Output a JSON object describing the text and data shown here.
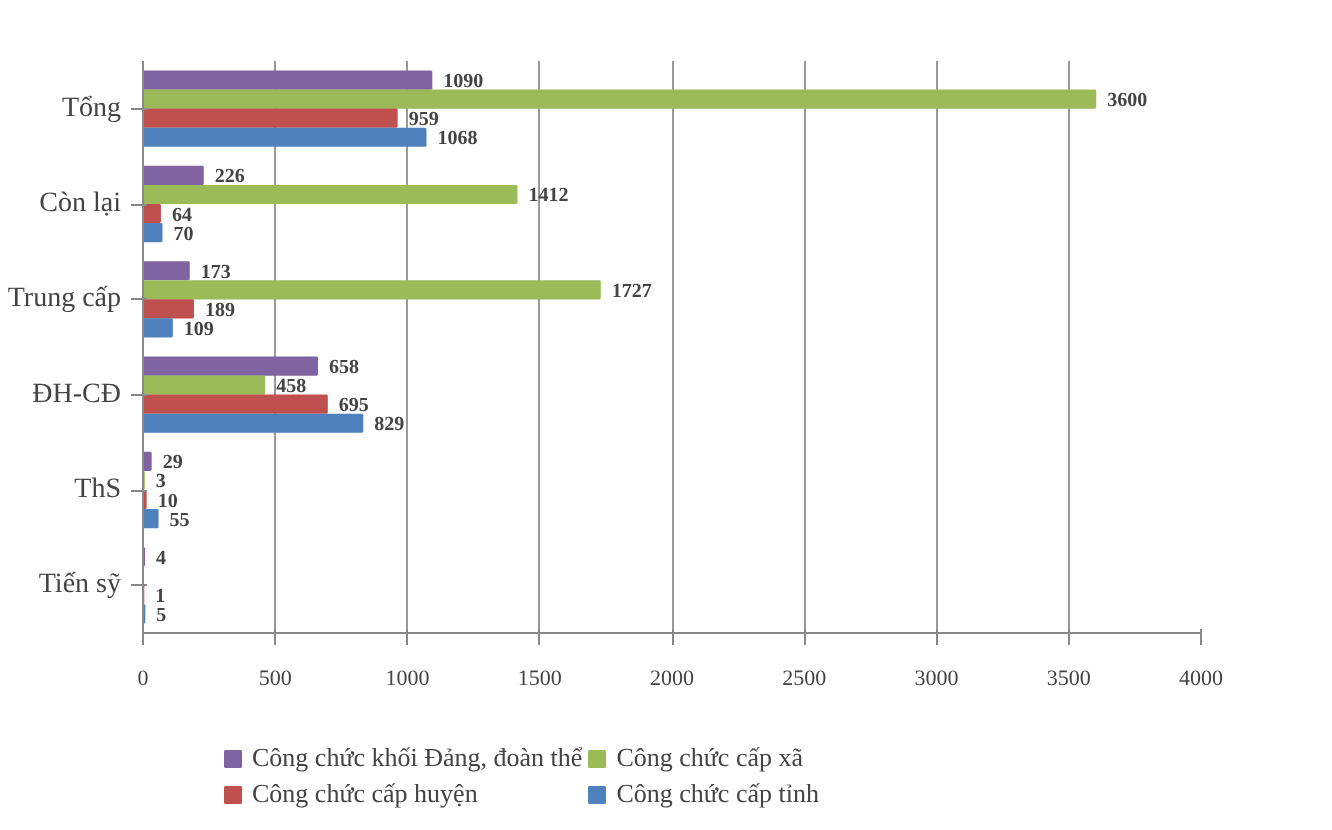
{
  "chart_data": {
    "type": "bar",
    "orientation": "horizontal",
    "categories": [
      "Tổng",
      "Còn lại",
      "Trung cấp",
      "ĐH-CĐ",
      "ThS",
      "Tiến sỹ"
    ],
    "series": [
      {
        "name": "Công chức khối Đảng, đoàn thể",
        "color": "#8064a2",
        "values": [
          1090,
          226,
          173,
          658,
          29,
          4
        ]
      },
      {
        "name": "Công chức cấp xã",
        "color": "#9bbb59",
        "values": [
          3600,
          1412,
          1727,
          458,
          3,
          null
        ]
      },
      {
        "name": "Công chức cấp huyện",
        "color": "#c0504d",
        "values": [
          959,
          64,
          189,
          695,
          10,
          1
        ]
      },
      {
        "name": "Công chức cấp tỉnh",
        "color": "#4f81bd",
        "values": [
          1068,
          70,
          109,
          829,
          55,
          5
        ]
      }
    ],
    "xlim": [
      0,
      4000
    ],
    "xticks": [
      0,
      500,
      1000,
      1500,
      2000,
      2500,
      3000,
      3500,
      4000
    ],
    "grid": "x",
    "legend": "bottom",
    "data_labels": true
  }
}
